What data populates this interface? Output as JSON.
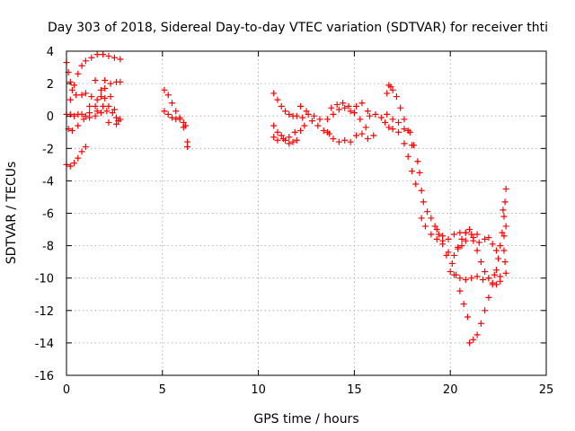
{
  "chart_data": {
    "type": "scatter",
    "title": "Day 303 of 2018, Sidereal Day-to-day VTEC variation (SDTVAR) for receiver thti",
    "xlabel": "GPS time / hours",
    "ylabel": "SDTVAR / TECUs",
    "xlim": [
      0,
      25
    ],
    "ylim": [
      -16,
      4
    ],
    "xticks": [
      0,
      5,
      10,
      15,
      20,
      25
    ],
    "yticks": [
      -16,
      -14,
      -12,
      -10,
      -8,
      -6,
      -4,
      -2,
      0,
      2,
      4
    ],
    "xtick_labels": [
      "0",
      "5",
      "10",
      "15",
      "20",
      "25"
    ],
    "ytick_labels": [
      "-16",
      "-14",
      "-12",
      "-10",
      "-8",
      "-6",
      "-4",
      "-2",
      "0",
      "2",
      "4"
    ],
    "grid": true,
    "marker": "plus",
    "color": "#ff0000",
    "series": [
      {
        "values": [
          [
            0.0,
            3.3
          ],
          [
            0.1,
            2.7
          ],
          [
            0.2,
            2.1
          ],
          [
            0.3,
            1.6
          ],
          [
            0.5,
            1.3
          ],
          [
            0.8,
            1.3
          ],
          [
            1.0,
            1.4
          ],
          [
            1.3,
            1.2
          ],
          [
            1.6,
            1.0
          ],
          [
            1.9,
            0.6
          ],
          [
            0.0,
            -3.0
          ],
          [
            0.2,
            -3.1
          ],
          [
            0.4,
            -2.9
          ],
          [
            0.6,
            -2.6
          ],
          [
            0.8,
            -2.2
          ],
          [
            1.0,
            -1.9
          ],
          [
            0.0,
            0.1
          ],
          [
            0.2,
            0.1
          ],
          [
            0.4,
            0.0
          ],
          [
            0.6,
            0.1
          ],
          [
            0.8,
            0.1
          ],
          [
            1.0,
            0.0
          ],
          [
            1.2,
            -0.1
          ],
          [
            1.5,
            0.0
          ],
          [
            1.8,
            0.2
          ],
          [
            2.1,
            0.3
          ],
          [
            0.2,
            1.0
          ],
          [
            0.4,
            1.9
          ],
          [
            0.6,
            2.6
          ],
          [
            0.8,
            3.1
          ],
          [
            1.0,
            3.4
          ],
          [
            1.3,
            3.6
          ],
          [
            1.6,
            3.8
          ],
          [
            1.9,
            3.8
          ],
          [
            2.2,
            3.7
          ],
          [
            2.5,
            3.6
          ],
          [
            2.8,
            3.5
          ],
          [
            0.1,
            -0.8
          ],
          [
            0.3,
            -0.9
          ],
          [
            0.6,
            -0.6
          ],
          [
            0.9,
            -0.2
          ],
          [
            1.2,
            0.2
          ],
          [
            1.5,
            0.6
          ],
          [
            1.8,
            1.2
          ],
          [
            2.0,
            1.7
          ],
          [
            2.3,
            2.0
          ],
          [
            2.6,
            2.1
          ],
          [
            2.8,
            2.1
          ],
          [
            1.5,
            2.2
          ],
          [
            1.8,
            1.6
          ],
          [
            2.0,
            1.1
          ],
          [
            2.2,
            0.6
          ],
          [
            2.4,
            0.2
          ],
          [
            2.6,
            -0.1
          ],
          [
            2.8,
            -0.2
          ],
          [
            2.0,
            2.2
          ],
          [
            2.3,
            1.2
          ],
          [
            2.5,
            0.4
          ],
          [
            2.7,
            -0.3
          ],
          [
            1.2,
            0.6
          ],
          [
            1.6,
            0.3
          ],
          [
            2.2,
            -0.4
          ],
          [
            2.6,
            -0.5
          ],
          [
            5.1,
            1.6
          ],
          [
            5.3,
            1.3
          ],
          [
            5.5,
            0.8
          ],
          [
            5.7,
            0.3
          ],
          [
            5.9,
            -0.2
          ],
          [
            6.1,
            -0.7
          ],
          [
            6.3,
            -1.6
          ],
          [
            5.1,
            0.3
          ],
          [
            5.3,
            0.1
          ],
          [
            5.5,
            -0.1
          ],
          [
            5.7,
            -0.2
          ],
          [
            5.9,
            -0.1
          ],
          [
            6.1,
            -0.4
          ],
          [
            6.2,
            -0.6
          ],
          [
            6.3,
            -1.9
          ],
          [
            10.8,
            1.4
          ],
          [
            11.0,
            1.0
          ],
          [
            11.2,
            0.6
          ],
          [
            11.4,
            0.3
          ],
          [
            11.6,
            0.1
          ],
          [
            11.8,
            0.0
          ],
          [
            12.0,
            0.0
          ],
          [
            12.3,
            -0.1
          ],
          [
            12.6,
            0.1
          ],
          [
            12.9,
            0.0
          ],
          [
            13.2,
            -0.2
          ],
          [
            10.8,
            -0.6
          ],
          [
            11.0,
            -1.0
          ],
          [
            11.2,
            -1.2
          ],
          [
            11.4,
            -1.5
          ],
          [
            11.6,
            -1.7
          ],
          [
            11.8,
            -1.6
          ],
          [
            12.0,
            -1.5
          ],
          [
            12.2,
            -0.9
          ],
          [
            12.4,
            -0.6
          ],
          [
            10.8,
            -1.3
          ],
          [
            11.0,
            -1.5
          ],
          [
            11.3,
            -1.4
          ],
          [
            11.6,
            -1.3
          ],
          [
            11.9,
            -1.0
          ],
          [
            12.2,
            0.6
          ],
          [
            12.5,
            0.3
          ],
          [
            12.8,
            -0.3
          ],
          [
            13.1,
            -0.6
          ],
          [
            13.4,
            -0.9
          ],
          [
            13.7,
            -1.1
          ],
          [
            13.6,
            -0.2
          ],
          [
            13.9,
            0.1
          ],
          [
            14.2,
            0.4
          ],
          [
            14.5,
            0.5
          ],
          [
            14.8,
            0.3
          ],
          [
            15.1,
            0.6
          ],
          [
            15.4,
            0.8
          ],
          [
            15.7,
            0.3
          ],
          [
            13.8,
            0.5
          ],
          [
            14.1,
            0.7
          ],
          [
            14.4,
            0.8
          ],
          [
            14.7,
            0.6
          ],
          [
            15.0,
            0.2
          ],
          [
            15.3,
            -0.2
          ],
          [
            15.6,
            -0.7
          ],
          [
            13.6,
            -1.0
          ],
          [
            13.9,
            -1.4
          ],
          [
            14.2,
            -1.6
          ],
          [
            14.5,
            -1.5
          ],
          [
            14.8,
            -1.6
          ],
          [
            15.1,
            -1.2
          ],
          [
            15.4,
            -1.1
          ],
          [
            15.7,
            -1.4
          ],
          [
            16.0,
            -1.2
          ],
          [
            15.8,
            0.0
          ],
          [
            16.1,
            0.1
          ],
          [
            16.4,
            -0.1
          ],
          [
            16.7,
            0.1
          ],
          [
            17.0,
            -0.2
          ],
          [
            17.3,
            -0.4
          ],
          [
            17.6,
            -0.8
          ],
          [
            17.9,
            -1.0
          ],
          [
            18.1,
            -1.8
          ],
          [
            16.7,
            1.4
          ],
          [
            16.8,
            1.9
          ],
          [
            16.9,
            1.8
          ],
          [
            17.0,
            1.6
          ],
          [
            17.2,
            1.2
          ],
          [
            17.4,
            0.5
          ],
          [
            17.6,
            -0.2
          ],
          [
            17.8,
            -0.9
          ],
          [
            18.0,
            -1.8
          ],
          [
            16.6,
            -0.4
          ],
          [
            16.8,
            -0.7
          ],
          [
            17.0,
            -0.8
          ],
          [
            17.3,
            -1.0
          ],
          [
            17.6,
            -1.7
          ],
          [
            17.8,
            -2.5
          ],
          [
            18.0,
            -3.4
          ],
          [
            18.2,
            -4.2
          ],
          [
            18.3,
            -2.8
          ],
          [
            18.4,
            -3.5
          ],
          [
            18.5,
            -4.6
          ],
          [
            18.6,
            -5.3
          ],
          [
            18.8,
            -5.9
          ],
          [
            19.0,
            -6.3
          ],
          [
            19.2,
            -6.8
          ],
          [
            19.4,
            -7.3
          ],
          [
            19.6,
            -7.7
          ],
          [
            18.5,
            -6.3
          ],
          [
            18.7,
            -6.8
          ],
          [
            19.0,
            -7.3
          ],
          [
            19.3,
            -7.6
          ],
          [
            19.6,
            -7.9
          ],
          [
            19.9,
            -8.4
          ],
          [
            20.1,
            -9.1
          ],
          [
            20.3,
            -9.8
          ],
          [
            20.5,
            -10.8
          ],
          [
            20.7,
            -11.6
          ],
          [
            20.9,
            -12.4
          ],
          [
            19.3,
            -7.0
          ],
          [
            19.6,
            -7.4
          ],
          [
            19.9,
            -7.6
          ],
          [
            20.2,
            -7.3
          ],
          [
            20.5,
            -7.2
          ],
          [
            20.8,
            -7.2
          ],
          [
            21.1,
            -7.3
          ],
          [
            21.4,
            -7.3
          ],
          [
            19.8,
            -8.6
          ],
          [
            20.0,
            -9.6
          ],
          [
            20.2,
            -9.8
          ],
          [
            20.5,
            -10.0
          ],
          [
            20.8,
            -10.1
          ],
          [
            21.1,
            -10.0
          ],
          [
            21.4,
            -9.9
          ],
          [
            21.7,
            -10.1
          ],
          [
            22.0,
            -10.0
          ],
          [
            22.3,
            -9.8
          ],
          [
            22.6,
            -9.9
          ],
          [
            20.4,
            -8.1
          ],
          [
            20.6,
            -7.6
          ],
          [
            20.8,
            -7.2
          ],
          [
            21.0,
            -7.0
          ],
          [
            21.2,
            -7.5
          ],
          [
            21.4,
            -8.3
          ],
          [
            21.6,
            -9.0
          ],
          [
            21.8,
            -9.6
          ],
          [
            22.0,
            -10.0
          ],
          [
            22.2,
            -10.3
          ],
          [
            22.4,
            -10.4
          ],
          [
            22.6,
            -10.2
          ],
          [
            20.2,
            -8.6
          ],
          [
            20.4,
            -8.2
          ],
          [
            20.6,
            -8.0
          ],
          [
            20.8,
            -7.7
          ],
          [
            21.2,
            -7.7
          ],
          [
            21.5,
            -7.8
          ],
          [
            21.8,
            -7.6
          ],
          [
            22.0,
            -7.5
          ],
          [
            22.2,
            -7.9
          ],
          [
            22.4,
            -8.3
          ],
          [
            21.0,
            -14.0
          ],
          [
            21.2,
            -13.8
          ],
          [
            21.4,
            -13.5
          ],
          [
            21.6,
            -12.8
          ],
          [
            21.8,
            -12.0
          ],
          [
            22.0,
            -11.2
          ],
          [
            22.2,
            -10.4
          ],
          [
            22.4,
            -9.5
          ],
          [
            22.5,
            -8.8
          ],
          [
            22.6,
            -8.0
          ],
          [
            22.7,
            -7.2
          ],
          [
            22.8,
            -6.2
          ],
          [
            22.85,
            -5.3
          ],
          [
            22.9,
            -4.5
          ],
          [
            22.8,
            -7.4
          ],
          [
            22.8,
            -8.3
          ],
          [
            22.85,
            -9.0
          ],
          [
            22.9,
            -9.7
          ],
          [
            22.9,
            -6.8
          ],
          [
            22.75,
            -5.8
          ]
        ]
      }
    ]
  }
}
